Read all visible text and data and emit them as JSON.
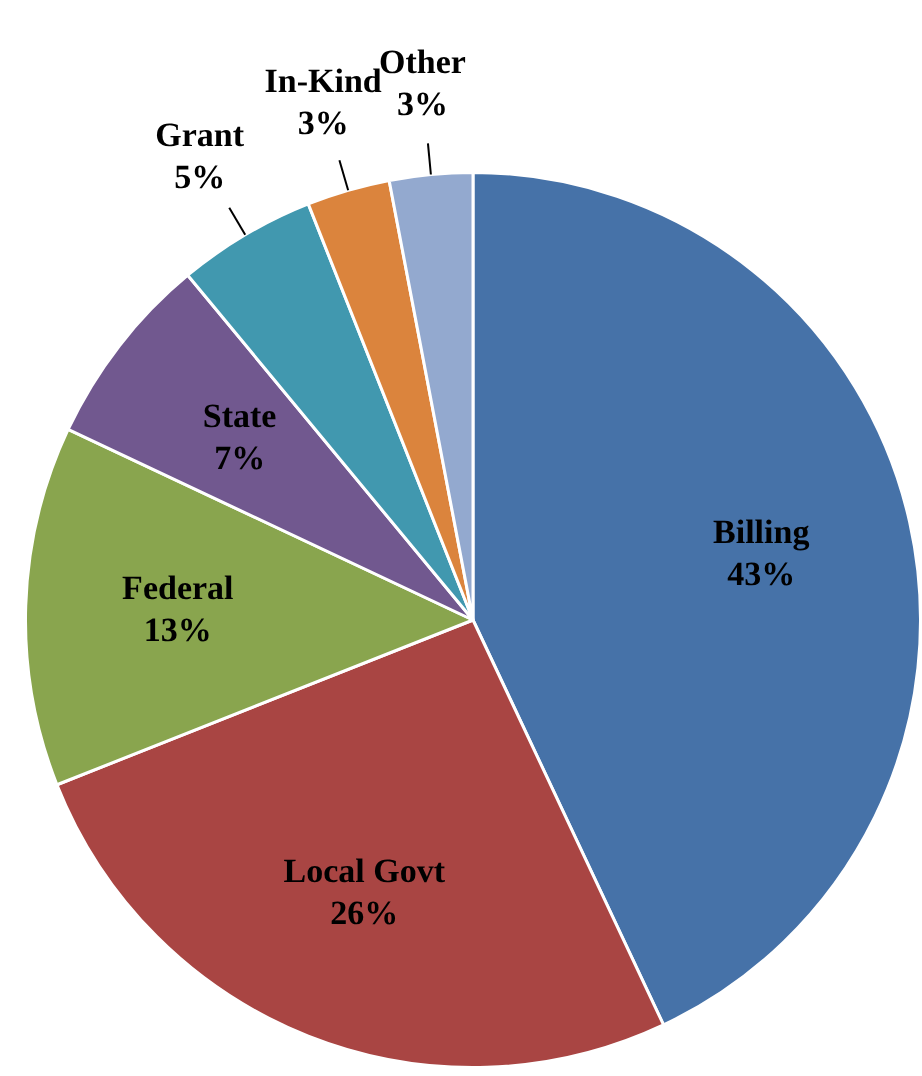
{
  "chart_data": {
    "type": "pie",
    "categories": [
      "Billing",
      "Local Govt",
      "Federal",
      "State",
      "Grant",
      "In-Kind",
      "Other"
    ],
    "values": [
      43,
      26,
      13,
      7,
      5,
      3,
      3
    ],
    "value_labels": [
      "43%",
      "26%",
      "13%",
      "7%",
      "5%",
      "3%",
      "3%"
    ],
    "colors": [
      "#4672a8",
      "#a94543",
      "#89a54e",
      "#71588f",
      "#4198af",
      "#db843d",
      "#93a9cf"
    ],
    "legend": false
  }
}
